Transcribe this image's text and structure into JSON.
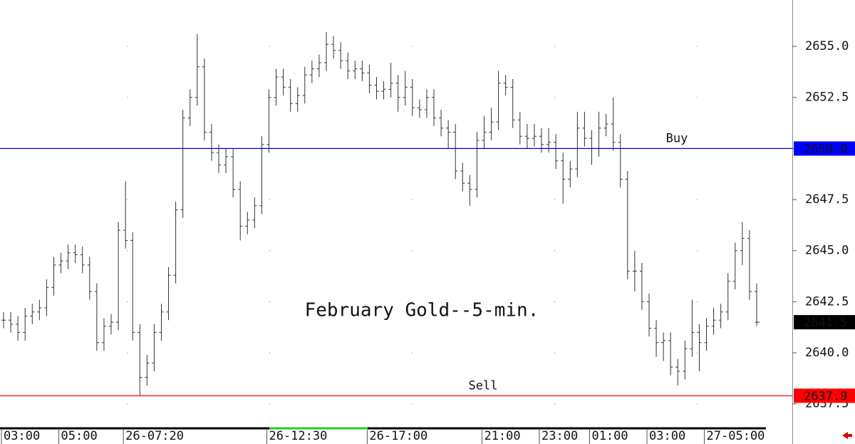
{
  "chart_data": {
    "type": "ohlc",
    "annotation": "February Gold--5-min.",
    "bar_color": "#333333",
    "ylim": [
      2636.34,
      2657.27
    ],
    "yticks": [
      {
        "value": 2637.5,
        "label": "2637.5"
      },
      {
        "value": 2640,
        "label": "2640.0"
      },
      {
        "value": 2642.5,
        "label": "2642.5"
      },
      {
        "value": 2645,
        "label": "2645.0"
      },
      {
        "value": 2647.5,
        "label": "2647.5"
      },
      {
        "value": 2650,
        "label": "2650.0"
      },
      {
        "value": 2652.5,
        "label": "2652.5"
      },
      {
        "value": 2655,
        "label": "2655.0"
      }
    ],
    "grid": true,
    "categories": [
      "03:00",
      null,
      null,
      null,
      null,
      null,
      null,
      null,
      "05:00",
      null,
      null,
      null,
      null,
      null,
      null,
      null,
      null,
      "26-07:20",
      null,
      null,
      null,
      null,
      null,
      null,
      null,
      null,
      null,
      null,
      null,
      null,
      null,
      null,
      null,
      null,
      null,
      null,
      null,
      "26-12:30",
      null,
      null,
      null,
      null,
      null,
      null,
      null,
      null,
      null,
      null,
      null,
      null,
      null,
      "26-17:00",
      null,
      null,
      null,
      null,
      null,
      null,
      null,
      null,
      null,
      null,
      null,
      null,
      null,
      null,
      null,
      "21:00",
      null,
      null,
      null,
      null,
      null,
      null,
      null,
      "23:00",
      null,
      null,
      null,
      null,
      null,
      null,
      "01:00",
      null,
      null,
      null,
      null,
      null,
      null,
      null,
      "03:00",
      null,
      null,
      null,
      null,
      null,
      null,
      null,
      "27-05:00",
      null,
      null,
      null,
      null,
      null,
      null,
      null
    ],
    "open": [
      2641.6,
      2641.6,
      2641.4,
      2641.0,
      2641.8,
      2642.0,
      2642.2,
      2643.2,
      2644.3,
      2644.5,
      2644.9,
      2644.8,
      2644.3,
      2643.0,
      2640.5,
      2641.3,
      2641.5,
      2646.0,
      2645.5,
      2641.0,
      2638.8,
      2639.5,
      2641.0,
      2642.0,
      2643.8,
      2647.0,
      2651.5,
      2652.5,
      2654.0,
      2650.8,
      2649.8,
      2649.2,
      2649.6,
      2648.0,
      2646.2,
      2646.5,
      2647.2,
      2650.2,
      2652.5,
      2653.5,
      2653.0,
      2652.2,
      2652.6,
      2653.6,
      2653.9,
      2654.2,
      2655.1,
      2654.8,
      2654.3,
      2653.8,
      2653.9,
      2653.7,
      2653.1,
      2652.8,
      2652.9,
      2653.2,
      2652.5,
      2653.0,
      2652.0,
      2651.9,
      2652.5,
      2651.5,
      2651.0,
      2650.8,
      2648.9,
      2648.3,
      2648.0,
      2650.4,
      2650.8,
      2651.3,
      2653.2,
      2653.0,
      2651.4,
      2650.6,
      2650.5,
      2650.6,
      2650.2,
      2650.3,
      2649.4,
      2648.5,
      2649.0,
      2651.0,
      2650.5,
      2650.0,
      2651.0,
      2651.2,
      2650.3,
      2648.5,
      2644.0,
      2644.0,
      2642.5,
      2641.2,
      2640.5,
      2640.6,
      2639.3,
      2639.1,
      2640.2,
      2641.0,
      2640.5,
      2641.3,
      2641.6,
      2642.0,
      2643.5,
      2645.0,
      2645.6,
      2643.0
    ],
    "high": [
      2642.0,
      2642.0,
      2641.8,
      2642.2,
      2642.4,
      2642.6,
      2643.6,
      2644.7,
      2644.9,
      2645.3,
      2645.3,
      2645.2,
      2644.7,
      2643.4,
      2641.7,
      2641.9,
      2646.4,
      2648.4,
      2645.9,
      2641.4,
      2639.9,
      2641.4,
      2642.4,
      2644.2,
      2647.4,
      2651.9,
      2652.9,
      2655.6,
      2654.4,
      2651.2,
      2650.2,
      2650.0,
      2650.0,
      2648.4,
      2646.9,
      2647.6,
      2650.6,
      2652.9,
      2653.9,
      2653.9,
      2653.4,
      2653.0,
      2654.0,
      2654.3,
      2654.6,
      2655.7,
      2655.5,
      2655.2,
      2654.7,
      2654.3,
      2654.3,
      2654.1,
      2653.5,
      2653.3,
      2654.2,
      2653.6,
      2653.8,
      2653.4,
      2652.4,
      2652.9,
      2652.9,
      2651.9,
      2651.4,
      2651.2,
      2649.3,
      2648.7,
      2650.8,
      2651.6,
      2652.0,
      2653.8,
      2653.6,
      2653.4,
      2651.8,
      2651.2,
      2651.2,
      2651.0,
      2651.0,
      2650.7,
      2649.8,
      2649.4,
      2651.8,
      2651.8,
      2650.9,
      2651.8,
      2651.7,
      2652.5,
      2650.7,
      2648.9,
      2645.0,
      2644.4,
      2642.9,
      2641.6,
      2641.0,
      2641.0,
      2639.7,
      2640.6,
      2642.6,
      2641.4,
      2641.7,
      2642.2,
      2642.4,
      2643.9,
      2645.4,
      2646.4,
      2646.0,
      2643.4
    ],
    "low": [
      2641.2,
      2641.0,
      2640.6,
      2640.6,
      2641.4,
      2641.6,
      2641.8,
      2642.8,
      2643.9,
      2644.1,
      2644.4,
      2643.9,
      2642.6,
      2640.1,
      2640.1,
      2640.9,
      2641.1,
      2645.1,
      2640.6,
      2637.9,
      2638.4,
      2639.1,
      2640.6,
      2641.6,
      2643.4,
      2646.6,
      2651.1,
      2652.1,
      2650.4,
      2649.4,
      2648.8,
      2648.8,
      2647.6,
      2645.5,
      2645.8,
      2646.1,
      2646.8,
      2649.8,
      2652.1,
      2652.6,
      2651.8,
      2651.8,
      2652.2,
      2653.2,
      2653.5,
      2653.8,
      2654.4,
      2653.9,
      2653.4,
      2653.4,
      2653.3,
      2652.7,
      2652.4,
      2652.4,
      2652.5,
      2651.8,
      2652.1,
      2651.6,
      2651.5,
      2651.5,
      2651.1,
      2650.6,
      2650.0,
      2648.5,
      2647.9,
      2647.2,
      2647.6,
      2650.0,
      2650.4,
      2650.9,
      2652.6,
      2651.0,
      2650.2,
      2650.0,
      2650.1,
      2649.8,
      2649.8,
      2649.0,
      2647.3,
      2648.1,
      2648.6,
      2650.1,
      2649.2,
      2649.6,
      2650.6,
      2649.9,
      2648.1,
      2643.6,
      2643.0,
      2642.1,
      2640.8,
      2639.8,
      2639.6,
      2638.9,
      2638.4,
      2638.7,
      2639.8,
      2639.1,
      2640.1,
      2640.9,
      2641.2,
      2641.6,
      2643.1,
      2644.3,
      2642.6,
      2641.3
    ],
    "close": [
      2641.6,
      2641.4,
      2641.0,
      2641.8,
      2642.0,
      2642.2,
      2643.2,
      2644.3,
      2644.5,
      2644.9,
      2644.8,
      2644.3,
      2643.0,
      2640.5,
      2641.3,
      2641.5,
      2646.0,
      2645.5,
      2641.0,
      2638.8,
      2639.5,
      2641.0,
      2642.0,
      2643.8,
      2647.0,
      2651.5,
      2652.5,
      2654.0,
      2650.8,
      2649.8,
      2649.2,
      2649.6,
      2648.0,
      2646.2,
      2646.5,
      2647.2,
      2650.2,
      2652.5,
      2653.5,
      2653.0,
      2652.2,
      2652.6,
      2653.6,
      2653.9,
      2654.2,
      2655.1,
      2654.8,
      2654.3,
      2653.8,
      2653.9,
      2653.7,
      2653.1,
      2652.8,
      2652.9,
      2653.2,
      2652.5,
      2653.0,
      2652.0,
      2651.9,
      2652.5,
      2651.5,
      2651.0,
      2650.8,
      2648.9,
      2648.3,
      2648.0,
      2650.4,
      2650.8,
      2651.3,
      2653.2,
      2653.0,
      2651.4,
      2650.6,
      2650.5,
      2650.6,
      2650.2,
      2650.3,
      2649.4,
      2648.5,
      2649.0,
      2651.0,
      2650.5,
      2650.0,
      2651.0,
      2651.2,
      2650.3,
      2648.5,
      2644.0,
      2644.0,
      2642.5,
      2641.2,
      2640.5,
      2640.6,
      2639.3,
      2639.1,
      2640.2,
      2641.0,
      2640.5,
      2641.3,
      2641.6,
      2642.0,
      2643.5,
      2645.0,
      2645.6,
      2643.0,
      2641.5
    ],
    "hlines": [
      {
        "name": "Buy",
        "value": 2650.0,
        "value_label": "2650.0",
        "color": "#0000ff"
      },
      {
        "name": "Sell",
        "value": 2637.9,
        "value_label": "2637.9",
        "color": "#ff0000"
      }
    ],
    "last_price": {
      "value": 2641.5,
      "label": "2641.5",
      "color": "#000000"
    }
  }
}
